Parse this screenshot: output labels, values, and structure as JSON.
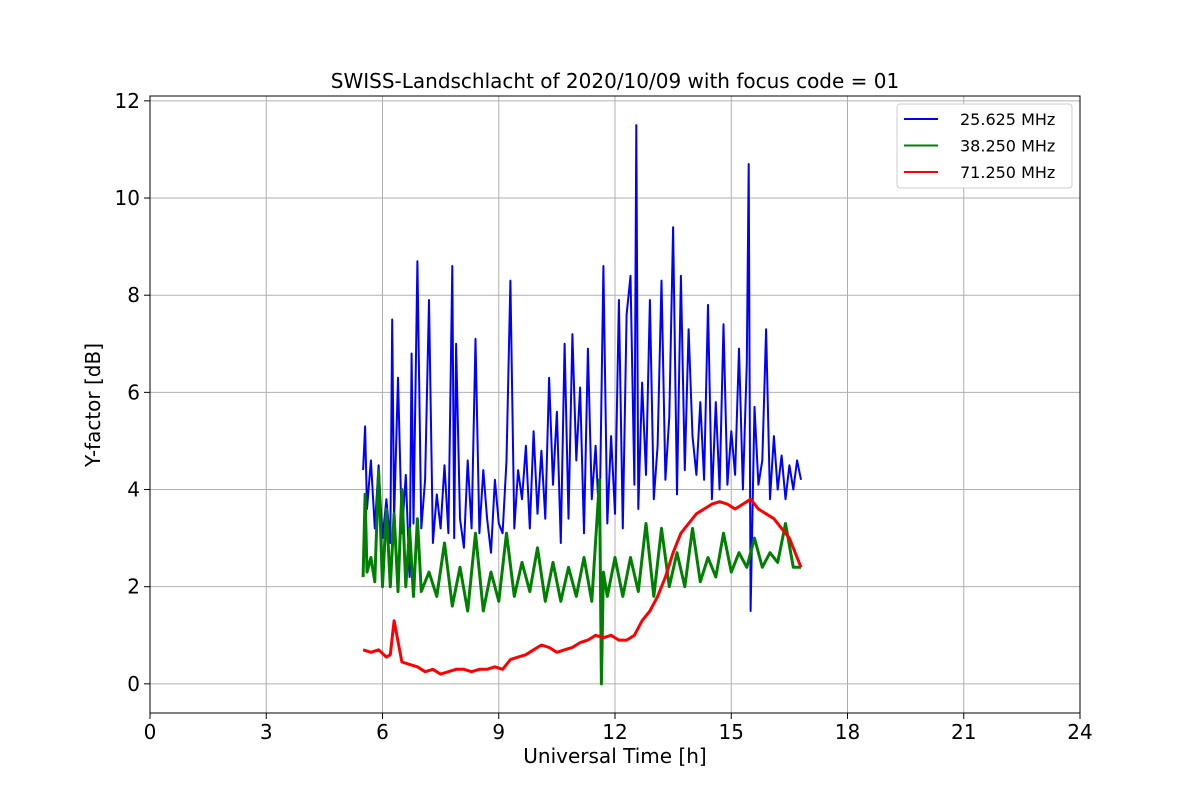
{
  "chart_data": {
    "type": "line",
    "title": "SWISS-Landschlacht of 2020/10/09 with focus code = 01",
    "xlabel": "Universal Time [h]",
    "ylabel": "Y-factor [dB]",
    "xlim": [
      0,
      24
    ],
    "ylim": [
      -0.6,
      12.1
    ],
    "xticks": [
      0,
      3,
      6,
      9,
      12,
      15,
      18,
      21,
      24
    ],
    "yticks": [
      0,
      2,
      4,
      6,
      8,
      10,
      12
    ],
    "grid": true,
    "legend_position": "top-right",
    "series": [
      {
        "name": "25.625 MHz",
        "color": "#0000ff",
        "x": [
          5.5,
          5.55,
          5.6,
          5.7,
          5.8,
          5.9,
          6.0,
          6.1,
          6.2,
          6.25,
          6.3,
          6.4,
          6.5,
          6.6,
          6.7,
          6.75,
          6.8,
          6.9,
          7.0,
          7.1,
          7.2,
          7.3,
          7.4,
          7.5,
          7.6,
          7.7,
          7.8,
          7.85,
          7.9,
          8.0,
          8.1,
          8.2,
          8.3,
          8.4,
          8.5,
          8.6,
          8.7,
          8.8,
          8.9,
          9.0,
          9.1,
          9.2,
          9.3,
          9.4,
          9.5,
          9.6,
          9.7,
          9.8,
          9.9,
          10.0,
          10.1,
          10.2,
          10.3,
          10.4,
          10.5,
          10.6,
          10.7,
          10.8,
          10.9,
          11.0,
          11.1,
          11.2,
          11.3,
          11.4,
          11.5,
          11.6,
          11.7,
          11.8,
          11.9,
          12.0,
          12.1,
          12.2,
          12.3,
          12.4,
          12.5,
          12.55,
          12.6,
          12.7,
          12.8,
          12.9,
          13.0,
          13.1,
          13.2,
          13.3,
          13.4,
          13.5,
          13.6,
          13.7,
          13.8,
          13.9,
          14.0,
          14.1,
          14.2,
          14.3,
          14.4,
          14.5,
          14.6,
          14.7,
          14.8,
          14.9,
          15.0,
          15.1,
          15.2,
          15.3,
          15.4,
          15.45,
          15.5,
          15.6,
          15.7,
          15.8,
          15.9,
          16.0,
          16.1,
          16.2,
          16.3,
          16.4,
          16.5,
          16.6,
          16.7,
          16.8
        ],
        "y": [
          4.4,
          5.3,
          3.6,
          4.6,
          3.2,
          4.5,
          3.0,
          3.8,
          2.9,
          7.5,
          3.4,
          6.3,
          3.1,
          4.3,
          2.2,
          6.8,
          3.3,
          8.7,
          3.2,
          4.2,
          7.9,
          2.9,
          3.9,
          3.2,
          4.5,
          3.1,
          8.6,
          3.0,
          7.0,
          3.4,
          2.8,
          4.6,
          3.2,
          7.1,
          3.1,
          4.4,
          3.4,
          2.7,
          4.2,
          3.3,
          3.1,
          4.6,
          8.3,
          3.2,
          4.4,
          3.8,
          4.9,
          3.2,
          5.2,
          3.5,
          4.8,
          3.4,
          6.3,
          4.1,
          5.6,
          2.9,
          7.0,
          3.4,
          7.2,
          4.6,
          6.1,
          3.1,
          6.9,
          3.8,
          4.9,
          3.2,
          8.6,
          3.3,
          5.1,
          3.5,
          7.9,
          3.2,
          7.6,
          8.4,
          4.1,
          11.5,
          3.6,
          6.2,
          4.3,
          7.9,
          3.8,
          4.9,
          8.3,
          4.2,
          5.5,
          9.4,
          3.9,
          8.4,
          4.4,
          7.3,
          5.1,
          4.3,
          5.8,
          4.2,
          7.8,
          3.8,
          5.8,
          4.0,
          7.4,
          4.1,
          5.2,
          4.3,
          6.9,
          4.0,
          6.6,
          10.7,
          1.5,
          5.7,
          4.1,
          4.6,
          7.3,
          3.8,
          5.1,
          4.0,
          4.7,
          3.8,
          4.5,
          4.0,
          4.6,
          4.2
        ]
      },
      {
        "name": "38.250 MHz",
        "color": "#008000",
        "x": [
          5.5,
          5.55,
          5.6,
          5.7,
          5.8,
          5.9,
          6.0,
          6.1,
          6.2,
          6.3,
          6.4,
          6.5,
          6.6,
          6.7,
          6.8,
          6.9,
          7.0,
          7.2,
          7.4,
          7.6,
          7.8,
          8.0,
          8.2,
          8.4,
          8.6,
          8.8,
          9.0,
          9.2,
          9.4,
          9.6,
          9.8,
          10.0,
          10.2,
          10.4,
          10.6,
          10.8,
          11.0,
          11.2,
          11.4,
          11.6,
          11.65,
          11.7,
          11.8,
          12.0,
          12.2,
          12.4,
          12.6,
          12.8,
          13.0,
          13.2,
          13.4,
          13.6,
          13.8,
          14.0,
          14.2,
          14.4,
          14.6,
          14.8,
          15.0,
          15.2,
          15.4,
          15.6,
          15.8,
          16.0,
          16.2,
          16.4,
          16.6,
          16.8
        ],
        "y": [
          2.2,
          3.9,
          2.3,
          2.6,
          2.1,
          4.4,
          2.0,
          3.6,
          2.0,
          3.5,
          1.9,
          4.0,
          2.0,
          3.2,
          1.8,
          3.4,
          1.9,
          2.3,
          1.8,
          2.9,
          1.6,
          2.4,
          1.5,
          3.1,
          1.5,
          2.3,
          1.7,
          3.1,
          1.8,
          2.5,
          1.9,
          2.8,
          1.7,
          2.5,
          1.7,
          2.4,
          1.8,
          2.6,
          1.7,
          4.2,
          0.0,
          2.3,
          1.8,
          2.6,
          1.8,
          2.6,
          1.9,
          3.3,
          1.8,
          3.2,
          2.0,
          2.7,
          2.0,
          3.2,
          2.1,
          2.6,
          2.2,
          3.1,
          2.3,
          2.7,
          2.4,
          3.0,
          2.4,
          2.7,
          2.5,
          3.3,
          2.4,
          2.4
        ]
      },
      {
        "name": "71.250 MHz",
        "color": "#ff0000",
        "x": [
          5.5,
          5.7,
          5.9,
          6.1,
          6.2,
          6.3,
          6.5,
          6.7,
          6.9,
          7.1,
          7.3,
          7.5,
          7.7,
          7.9,
          8.1,
          8.3,
          8.5,
          8.7,
          8.9,
          9.1,
          9.3,
          9.5,
          9.7,
          9.9,
          10.1,
          10.3,
          10.5,
          10.7,
          10.9,
          11.1,
          11.3,
          11.5,
          11.7,
          11.9,
          12.1,
          12.3,
          12.5,
          12.7,
          12.9,
          13.1,
          13.3,
          13.5,
          13.7,
          13.9,
          14.1,
          14.3,
          14.5,
          14.7,
          14.9,
          15.1,
          15.3,
          15.5,
          15.7,
          15.9,
          16.1,
          16.3,
          16.5,
          16.7,
          16.8
        ],
        "y": [
          0.7,
          0.65,
          0.7,
          0.55,
          0.6,
          1.3,
          0.45,
          0.4,
          0.35,
          0.25,
          0.3,
          0.2,
          0.25,
          0.3,
          0.3,
          0.25,
          0.3,
          0.3,
          0.35,
          0.3,
          0.5,
          0.55,
          0.6,
          0.7,
          0.8,
          0.75,
          0.65,
          0.7,
          0.75,
          0.85,
          0.9,
          1.0,
          0.95,
          1.0,
          0.9,
          0.9,
          1.0,
          1.3,
          1.5,
          1.8,
          2.2,
          2.7,
          3.1,
          3.3,
          3.5,
          3.6,
          3.7,
          3.75,
          3.7,
          3.6,
          3.7,
          3.8,
          3.6,
          3.5,
          3.4,
          3.2,
          3.0,
          2.6,
          2.4
        ]
      }
    ]
  }
}
